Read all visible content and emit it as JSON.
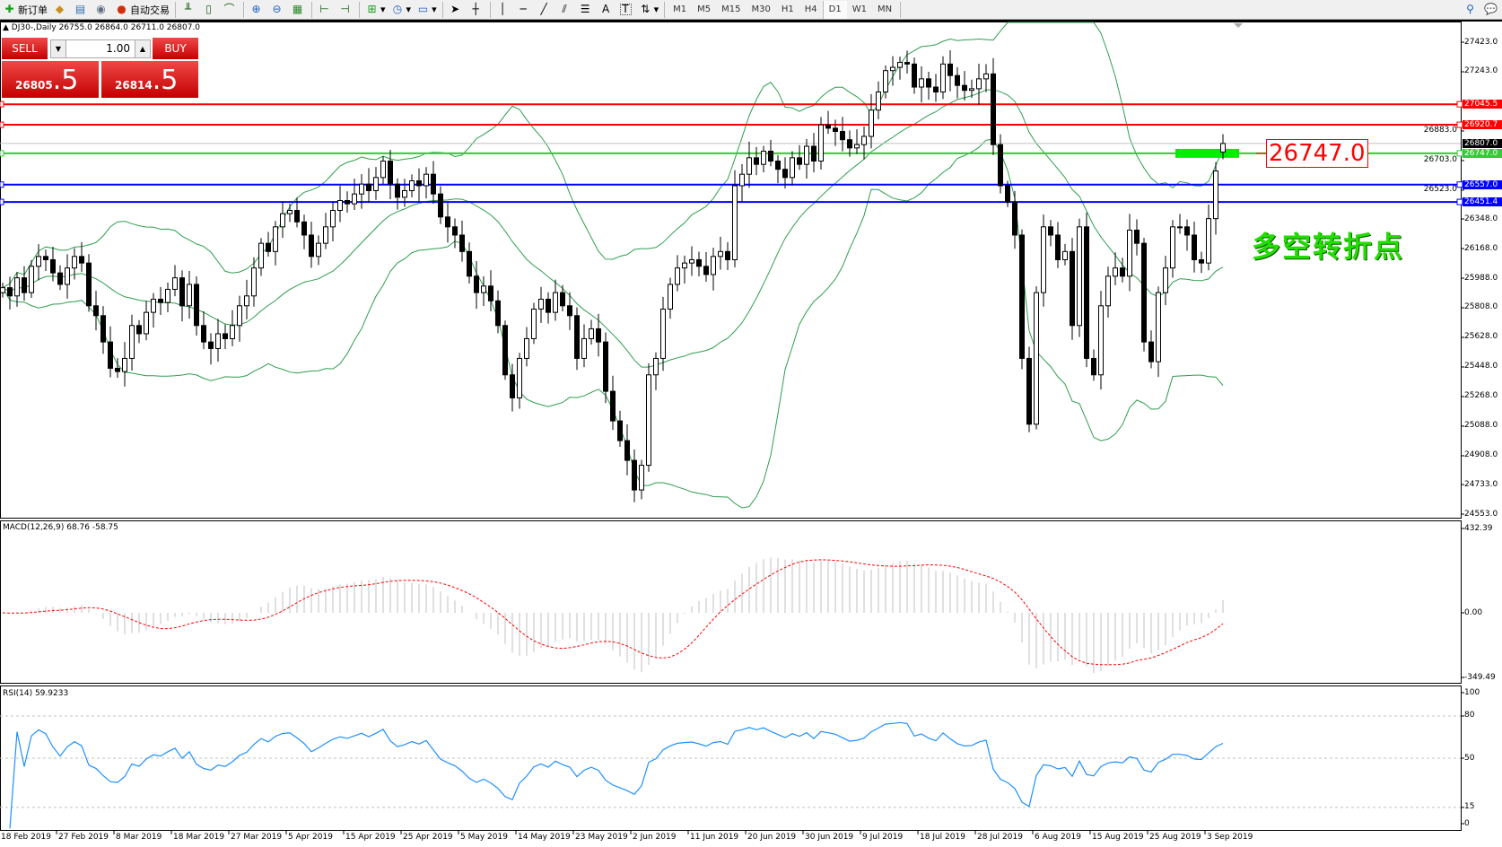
{
  "toolbar": {
    "new_order": "新订单",
    "auto_trading": "自动交易",
    "icons": [
      "new-order-icon",
      "metaeditor-icon",
      "market-watch-icon",
      "signals-icon",
      "auto-trading-icon",
      "bar-chart-icon",
      "candle-chart-icon",
      "line-chart-icon",
      "zoom-in-icon",
      "zoom-out-icon",
      "tile-windows-icon",
      "auto-scroll-icon",
      "chart-shift-icon",
      "indicators-icon",
      "periods-icon",
      "templates-icon",
      "cursor-icon",
      "crosshair-icon",
      "vertical-line-icon",
      "horizontal-line-icon",
      "trendline-icon",
      "equidistant-channel-icon",
      "fibonacci-icon",
      "text-icon",
      "text-label-icon",
      "arrows-icon"
    ],
    "text_tool": "A",
    "label_tool": "T",
    "timeframes": [
      "M1",
      "M5",
      "M15",
      "M30",
      "H1",
      "H4",
      "D1",
      "W1",
      "MN"
    ],
    "active_timeframe": "D1"
  },
  "chart": {
    "symbol_line": "DJ30-,Daily  26755.0 26864.0 26711.0 26807.0",
    "one_click": {
      "sell": "SELL",
      "buy": "BUY",
      "lot": "1.00",
      "sell_price_main": "26805",
      "sell_price_frac": ".5",
      "buy_price_main": "26814",
      "buy_price_frac": ".5"
    },
    "annotation_box": "26747.0",
    "annotation_text": "多空转折点",
    "price_ticks": [
      "27423.0",
      "27243.0",
      "26883.0",
      "26703.0",
      "26523.0",
      "26348.0",
      "26168.0",
      "25988.0",
      "25808.0",
      "25628.0",
      "25448.0",
      "25268.0",
      "25088.0",
      "24908.0",
      "24733.0",
      "24553.0"
    ],
    "hlines": [
      {
        "price": 27045.5,
        "label": "27045.5",
        "color": "#ff0000"
      },
      {
        "price": 26920.7,
        "label": "26920.7",
        "color": "#ff0000"
      },
      {
        "price": 26747.0,
        "label": "26747.0",
        "color": "#33cc33"
      },
      {
        "price": 26557.0,
        "label": "26557.0",
        "color": "#0000ff"
      },
      {
        "price": 26451.4,
        "label": "26451.4",
        "color": "#0000ff"
      }
    ],
    "current_price": {
      "price": 26807.0,
      "label": "26807.0"
    },
    "macd_label": "MACD(12,26,9) 68.76 -58.75",
    "macd_ticks": [
      "432.39",
      "0.00",
      "-349.49"
    ],
    "rsi_label": "RSI(14) 59.9233",
    "rsi_ticks": [
      "100",
      "80",
      "50",
      "15",
      "0"
    ],
    "dates": [
      "18 Feb 2019",
      "27 Feb 2019",
      "8 Mar 2019",
      "18 Mar 2019",
      "27 Mar 2019",
      "5 Apr 2019",
      "15 Apr 2019",
      "25 Apr 2019",
      "5 May 2019",
      "14 May 2019",
      "23 May 2019",
      "2 Jun 2019",
      "11 Jun 2019",
      "20 Jun 2019",
      "30 Jun 2019",
      "9 Jul 2019",
      "18 Jul 2019",
      "28 Jul 2019",
      "6 Aug 2019",
      "15 Aug 2019",
      "25 Aug 2019",
      "3 Sep 2019"
    ]
  },
  "chart_data": {
    "type": "candlestick",
    "symbol": "DJ30-",
    "timeframe": "Daily",
    "ylim": [
      24553.0,
      27423.0
    ],
    "last_bar": {
      "open": 26755.0,
      "high": 26864.0,
      "low": 26711.0,
      "close": 26807.0
    },
    "closes": [
      25930,
      25880,
      25990,
      25900,
      26060,
      26120,
      26100,
      26020,
      25950,
      26050,
      26120,
      26080,
      25820,
      25760,
      25600,
      25440,
      25420,
      25500,
      25700,
      25650,
      25780,
      25860,
      25840,
      25920,
      25990,
      25820,
      25950,
      25700,
      25600,
      25560,
      25650,
      25620,
      25700,
      25820,
      25880,
      26050,
      26200,
      26150,
      26300,
      26380,
      26400,
      26330,
      26250,
      26120,
      26200,
      26300,
      26400,
      26460,
      26440,
      26500,
      26560,
      26520,
      26600,
      26700,
      26560,
      26480,
      26520,
      26580,
      26550,
      26620,
      26500,
      26360,
      26300,
      26250,
      26150,
      26000,
      25900,
      25940,
      25850,
      25700,
      25400,
      25260,
      25500,
      25620,
      25800,
      25860,
      25780,
      25900,
      25820,
      25760,
      25500,
      25620,
      25680,
      25600,
      25300,
      25120,
      25000,
      24880,
      24700,
      24850,
      25400,
      25500,
      25800,
      25950,
      26050,
      26080,
      26100,
      26060,
      26010,
      26120,
      26150,
      26100,
      26550,
      26620,
      26720,
      26680,
      26760,
      26700,
      26650,
      26600,
      26720,
      26680,
      26790,
      26700,
      26920,
      26900,
      26880,
      26830,
      26780,
      26800,
      26850,
      27010,
      27120,
      27250,
      27270,
      27300,
      27290,
      27150,
      27200,
      27150,
      27120,
      27290,
      27220,
      27160,
      27130,
      27140,
      27200,
      27230,
      26800,
      26550,
      26450,
      26250,
      25500,
      25100,
      25900,
      26300,
      26250,
      26100,
      26150,
      25700,
      26300,
      25500,
      25400,
      25820,
      26000,
      26050,
      26000,
      26280,
      26200,
      25600,
      25480,
      25900,
      26050,
      26300,
      26300,
      26250,
      26100,
      26080,
      26350,
      26640,
      26807
    ],
    "indicators": [
      "Bollinger Bands",
      "MACD(12,26,9)",
      "RSI(14)"
    ],
    "colors": {
      "bands": "#2e9e4e",
      "macd_hist": "#c0c0c0",
      "macd_signal": "#ff0000",
      "rsi": "#1e90ff"
    }
  }
}
